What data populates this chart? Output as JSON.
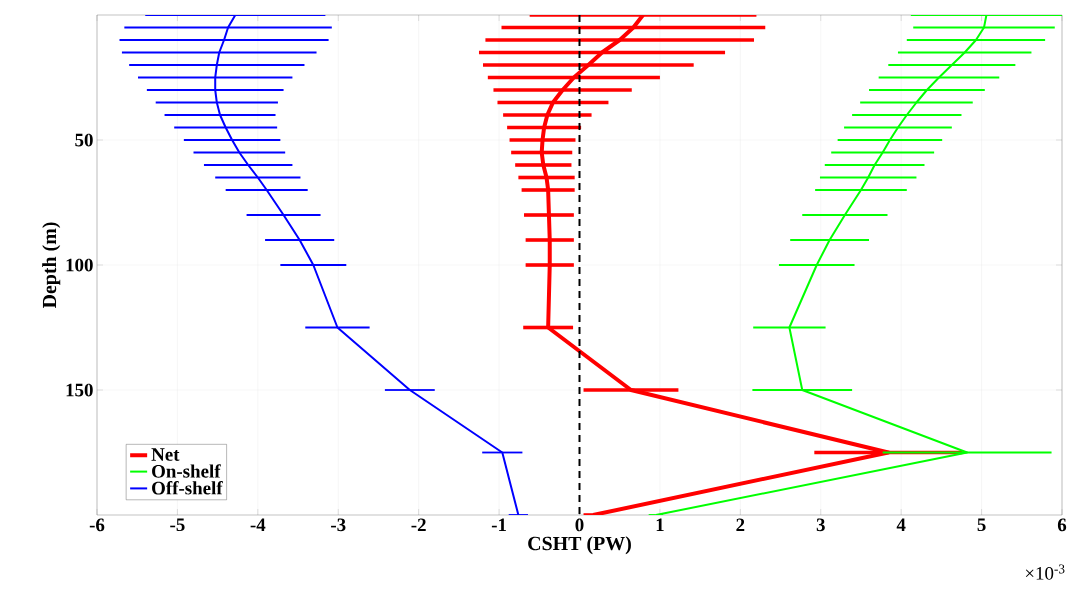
{
  "chart_data": {
    "type": "line",
    "xlabel": "CSHT (PW)",
    "ylabel": "Depth (m)",
    "annotations": [
      "×10$^{-3}$"
    ],
    "xlim": [
      -6,
      6
    ],
    "xticks": [
      -6,
      -5,
      -4,
      -3,
      -2,
      -1,
      0,
      1,
      2,
      3,
      4,
      5,
      6
    ],
    "ylim": [
      200,
      0
    ],
    "yticks": [
      50,
      100,
      150
    ],
    "grid": true,
    "legend": "bottom left",
    "marker": "none",
    "line_style": "solid",
    "ref_lines": [
      {
        "axis": "x",
        "value": 0,
        "color": "#000000",
        "line_style": "dashed"
      }
    ],
    "series": [
      {
        "name": "Net",
        "color": "#ff0000",
        "x": [
          0.79,
          0.67,
          0.5,
          0.28,
          0.11,
          -0.07,
          -0.21,
          -0.33,
          -0.4,
          -0.44,
          -0.46,
          -0.47,
          -0.45,
          -0.41,
          -0.39,
          -0.38,
          -0.37,
          -0.37,
          -0.39,
          0.64,
          3.84,
          0.17
        ],
        "values": [
          0,
          5,
          10,
          15,
          20,
          25,
          30,
          35,
          40,
          45,
          50,
          55,
          60,
          65,
          70,
          80,
          90,
          100,
          125,
          150,
          175,
          200
        ],
        "xerrors": [
          1.41,
          1.64,
          1.67,
          1.53,
          1.31,
          1.07,
          0.86,
          0.69,
          0.55,
          0.46,
          0.41,
          0.38,
          0.35,
          0.35,
          0.33,
          0.31,
          0.3,
          0.3,
          0.31,
          0.59,
          0.92,
          0.12
        ]
      },
      {
        "name": "On-shelf",
        "color": "#00ff00",
        "x": [
          5.06,
          5.03,
          4.93,
          4.79,
          4.63,
          4.47,
          4.32,
          4.19,
          4.07,
          3.96,
          3.86,
          3.77,
          3.67,
          3.59,
          3.5,
          3.3,
          3.11,
          2.95,
          2.61,
          2.77,
          4.82,
          0.95
        ],
        "values": [
          0,
          5,
          10,
          15,
          20,
          25,
          30,
          35,
          40,
          45,
          50,
          55,
          60,
          65,
          70,
          80,
          90,
          100,
          125,
          150,
          175,
          200
        ],
        "xerrors": [
          0.94,
          0.88,
          0.86,
          0.83,
          0.79,
          0.75,
          0.72,
          0.7,
          0.68,
          0.67,
          0.65,
          0.64,
          0.62,
          0.6,
          0.57,
          0.53,
          0.49,
          0.47,
          0.45,
          0.62,
          1.05,
          0.09
        ]
      },
      {
        "name": "Off-shelf",
        "color": "#0000ff",
        "x": [
          -4.28,
          -4.37,
          -4.42,
          -4.48,
          -4.51,
          -4.53,
          -4.53,
          -4.51,
          -4.47,
          -4.4,
          -4.32,
          -4.23,
          -4.12,
          -4.0,
          -3.89,
          -3.68,
          -3.48,
          -3.31,
          -3.01,
          -2.11,
          -0.96,
          -0.76
        ],
        "values": [
          0,
          5,
          10,
          15,
          20,
          25,
          30,
          35,
          40,
          45,
          50,
          55,
          60,
          65,
          70,
          80,
          90,
          100,
          125,
          150,
          175,
          200
        ],
        "xerrors": [
          1.12,
          1.29,
          1.3,
          1.21,
          1.09,
          0.96,
          0.85,
          0.76,
          0.69,
          0.64,
          0.6,
          0.57,
          0.55,
          0.53,
          0.51,
          0.46,
          0.43,
          0.41,
          0.4,
          0.31,
          0.25,
          0.12
        ]
      }
    ]
  }
}
